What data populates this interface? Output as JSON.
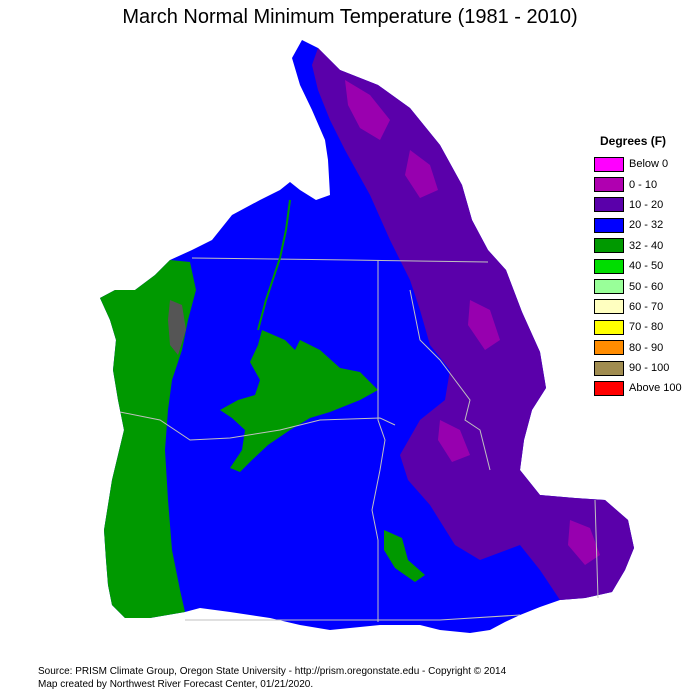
{
  "title": "March Normal Minimum Temperature (1981 - 2010)",
  "legend": {
    "title": "Degrees (F)",
    "items": [
      {
        "label": "Below 0",
        "color": "#ff00ff"
      },
      {
        "label": "0 - 10",
        "color": "#b000b0"
      },
      {
        "label": "10 - 20",
        "color": "#5a00aa"
      },
      {
        "label": "20 - 32",
        "color": "#0000ff"
      },
      {
        "label": "32 - 40",
        "color": "#009900"
      },
      {
        "label": "40 - 50",
        "color": "#00dd00"
      },
      {
        "label": "50 - 60",
        "color": "#99ff99"
      },
      {
        "label": "60 - 70",
        "color": "#ffffc0"
      },
      {
        "label": "70 - 80",
        "color": "#ffff00"
      },
      {
        "label": "80 - 90",
        "color": "#ff8c00"
      },
      {
        "label": "90 - 100",
        "color": "#a08c50"
      },
      {
        "label": "Above 100",
        "color": "#ff0000"
      }
    ]
  },
  "footer": {
    "line1": "Source: PRISM Climate Group, Oregon State University - http://prism.oregonstate.edu - Copyright © 2014",
    "line2": "Map created by Northwest River Forecast Center, 01/21/2020."
  }
}
